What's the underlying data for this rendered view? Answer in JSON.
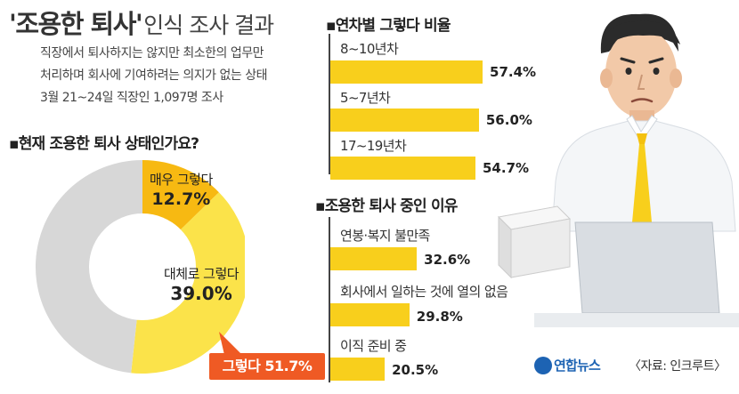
{
  "title": {
    "main": "'조용한 퇴사'",
    "sub": "인식 조사 결과"
  },
  "description": {
    "line1": "직장에서 퇴사하지는 않지만 최소한의 업무만",
    "line2": "처리하며 회사에 기여하려는 의지가 없는 상태",
    "line3": "3월 21~24일 직장인 1,097명 조사"
  },
  "chart_data": [
    {
      "type": "pie",
      "title": "▪현재 조용한 퇴사 상태인가요?",
      "slices": [
        {
          "label": "매우 그렇다",
          "value": 12.7,
          "display": "12.7%",
          "color": "#f7b912"
        },
        {
          "label": "대체로 그렇다",
          "value": 39.0,
          "display": "39.0%",
          "color": "#fbe34a"
        },
        {
          "label": "",
          "value": 48.3,
          "display": "",
          "color": "#d7d7d7"
        }
      ],
      "callout": "그렇다 51.7%",
      "callout_color": "#ef5a24"
    },
    {
      "type": "bar",
      "title": "▪연차별 그렇다 비율",
      "categories": [
        "8~10년차",
        "5~7년차",
        "17~19년차"
      ],
      "values": [
        57.4,
        56.0,
        54.7
      ],
      "labels": [
        "57.4%",
        "56.0%",
        "54.7%"
      ],
      "color": "#f8cf1c"
    },
    {
      "type": "bar",
      "title": "▪조용한 퇴사 중인 이유",
      "categories": [
        "연봉·복지 불만족",
        "회사에서 일하는 것에 열의 없음",
        "이직 준비 중"
      ],
      "values": [
        32.6,
        29.8,
        20.5
      ],
      "labels": [
        "32.6%",
        "29.8%",
        "20.5%"
      ],
      "color": "#f8cf1c"
    }
  ],
  "footer": {
    "logo": "연합뉴스",
    "source": "〈자료: 인크루트〉"
  },
  "colors": {
    "accent": "#f8cf1c",
    "logo": "#1d63b3"
  }
}
